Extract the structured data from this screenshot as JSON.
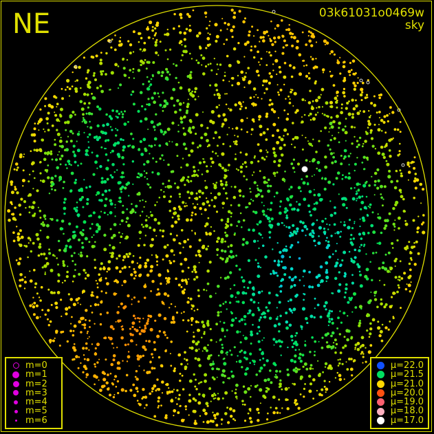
{
  "header": {
    "direction": "NE",
    "frame_id": "03k61031o0469w",
    "mode": "sky"
  },
  "chart_data": {
    "type": "scatter",
    "title": "",
    "description_axes": "all-sky fisheye projection",
    "magnitude_legend": [
      {
        "label": "m=0",
        "size": 0,
        "hollow": true
      },
      {
        "label": "m=1",
        "size": 1
      },
      {
        "label": "m=2",
        "size": 2
      },
      {
        "label": "m=3",
        "size": 3
      },
      {
        "label": "m=4",
        "size": 4
      },
      {
        "label": "m=5",
        "size": 5
      },
      {
        "label": "m=6",
        "size": 6
      }
    ],
    "magnitude_color": "#e000e0",
    "brightness_legend": [
      {
        "label": "μ=22.0",
        "mu": 22.0,
        "color": "#1050ff"
      },
      {
        "label": "μ=21.5",
        "mu": 21.5,
        "color": "#00e060"
      },
      {
        "label": "μ=21.0",
        "mu": 21.0,
        "color": "#ffd800"
      },
      {
        "label": "μ=20.0",
        "mu": 20.0,
        "color": "#ff5010"
      },
      {
        "label": "μ=19.0",
        "mu": 19.0,
        "color": "#ff6070"
      },
      {
        "label": "μ=18.0",
        "mu": 18.0,
        "color": "#ffb0c0"
      },
      {
        "label": "μ=17.0",
        "mu": 17.0,
        "color": "#ffffff"
      }
    ],
    "horizon_color": "#e0e000"
  }
}
